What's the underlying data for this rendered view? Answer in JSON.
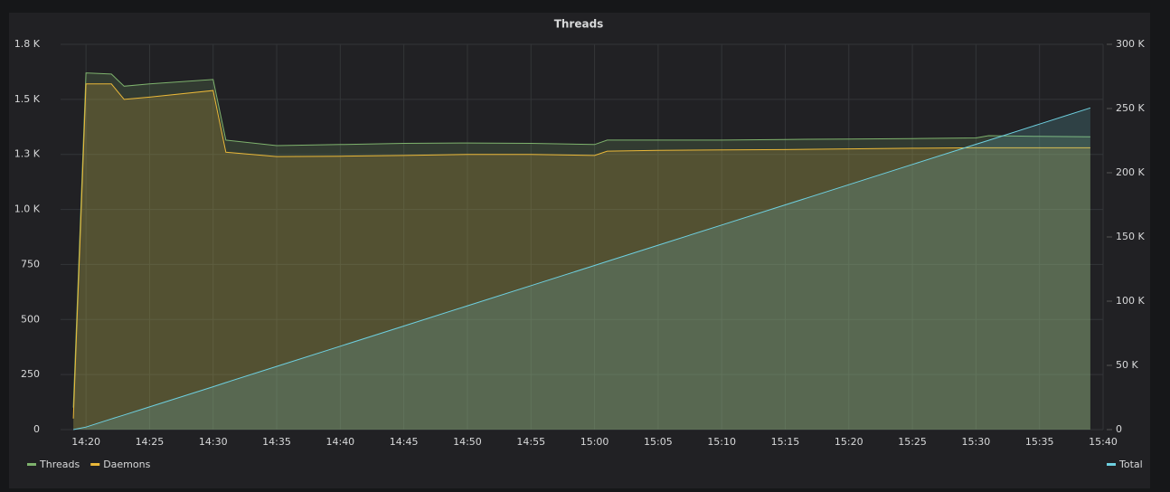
{
  "chart_data": {
    "type": "line",
    "title": "Threads",
    "x": [
      "14:19",
      "14:20",
      "14:22",
      "14:23",
      "14:25",
      "14:30",
      "14:31",
      "14:35",
      "14:40",
      "14:45",
      "14:50",
      "14:55",
      "15:00",
      "15:01",
      "15:05",
      "15:10",
      "15:15",
      "15:20",
      "15:25",
      "15:30",
      "15:31",
      "15:35",
      "15:39"
    ],
    "series": [
      {
        "name": "Threads",
        "color": "#7eb26d",
        "values": [
          100,
          1620,
          1615,
          1560,
          1570,
          1590,
          1315,
          1290,
          1295,
          1300,
          1302,
          1300,
          1295,
          1315,
          1315,
          1315,
          1318,
          1320,
          1322,
          1325,
          1335,
          1332,
          1330
        ]
      },
      {
        "name": "Daemons",
        "color": "#eab839",
        "values": [
          50,
          1570,
          1570,
          1500,
          1510,
          1540,
          1260,
          1240,
          1242,
          1245,
          1250,
          1250,
          1245,
          1265,
          1268,
          1270,
          1272,
          1275,
          1278,
          1280,
          1280,
          1280,
          1280
        ]
      },
      {
        "name": "Total",
        "color": "#6ed0e0",
        "axis": "y2",
        "values": [
          0,
          2000,
          8300,
          11400,
          17700,
          33400,
          36600,
          49200,
          64900,
          80600,
          96400,
          112100,
          127800,
          131000,
          143600,
          159300,
          175000,
          190700,
          206500,
          222200,
          225300,
          237900,
          250500
        ]
      }
    ],
    "xlim": [
      "14:18",
      "15:40"
    ],
    "xticks": [
      "14:20",
      "14:25",
      "14:30",
      "14:35",
      "14:40",
      "14:45",
      "14:50",
      "14:55",
      "15:00",
      "15:05",
      "15:10",
      "15:15",
      "15:20",
      "15:25",
      "15:30",
      "15:35",
      "15:40"
    ],
    "ylim": [
      0,
      1750
    ],
    "yticks": [
      0,
      250,
      500,
      750,
      {
        "value": 1000,
        "label": "1.0 K"
      },
      {
        "value": 1250,
        "label": "1.3 K"
      },
      {
        "value": 1500,
        "label": "1.5 K"
      },
      {
        "value": 1750,
        "label": "1.8 K"
      }
    ],
    "y2lim": [
      0,
      300000
    ],
    "y2ticks": [
      0,
      {
        "value": 50000,
        "label": "50 K"
      },
      {
        "value": 100000,
        "label": "100 K"
      },
      {
        "value": 150000,
        "label": "150 K"
      },
      {
        "value": 200000,
        "label": "200 K"
      },
      {
        "value": 250000,
        "label": "250 K"
      },
      {
        "value": 300000,
        "label": "300 K"
      }
    ],
    "grid": true,
    "fill": true
  }
}
